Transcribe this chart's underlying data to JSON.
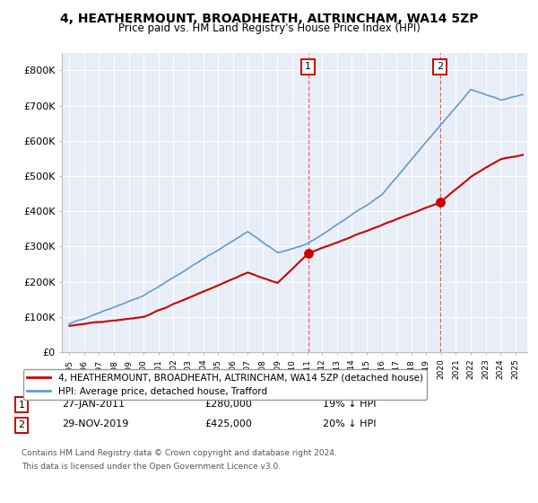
{
  "title": "4, HEATHERMOUNT, BROADHEATH, ALTRINCHAM, WA14 5ZP",
  "subtitle": "Price paid vs. HM Land Registry's House Price Index (HPI)",
  "ylim": [
    0,
    850000
  ],
  "yticks": [
    0,
    100000,
    200000,
    300000,
    400000,
    500000,
    600000,
    700000,
    800000
  ],
  "ytick_labels": [
    "£0",
    "£100K",
    "£200K",
    "£300K",
    "£400K",
    "£500K",
    "£600K",
    "£700K",
    "£800K"
  ],
  "background_color": "#ffffff",
  "plot_bg_color": "#e8eef8",
  "grid_color": "#ffffff",
  "vline1_x": 2011.07,
  "vline2_x": 2019.92,
  "sale1_y": 280000,
  "sale2_y": 425000,
  "legend_line1": "4, HEATHERMOUNT, BROADHEATH, ALTRINCHAM, WA14 5ZP (detached house)",
  "legend_line2": "HPI: Average price, detached house, Trafford",
  "ann1_label": "1",
  "ann1_text": "27-JAN-2011",
  "ann1_price": "£280,000",
  "ann1_pct": "19% ↓ HPI",
  "ann2_label": "2",
  "ann2_text": "29-NOV-2019",
  "ann2_price": "£425,000",
  "ann2_pct": "20% ↓ HPI",
  "footer1": "Contains HM Land Registry data © Crown copyright and database right 2024.",
  "footer2": "This data is licensed under the Open Government Licence v3.0.",
  "red_color": "#cc0000",
  "blue_color": "#6699cc",
  "xlim_left": 1994.5,
  "xlim_right": 2025.8
}
